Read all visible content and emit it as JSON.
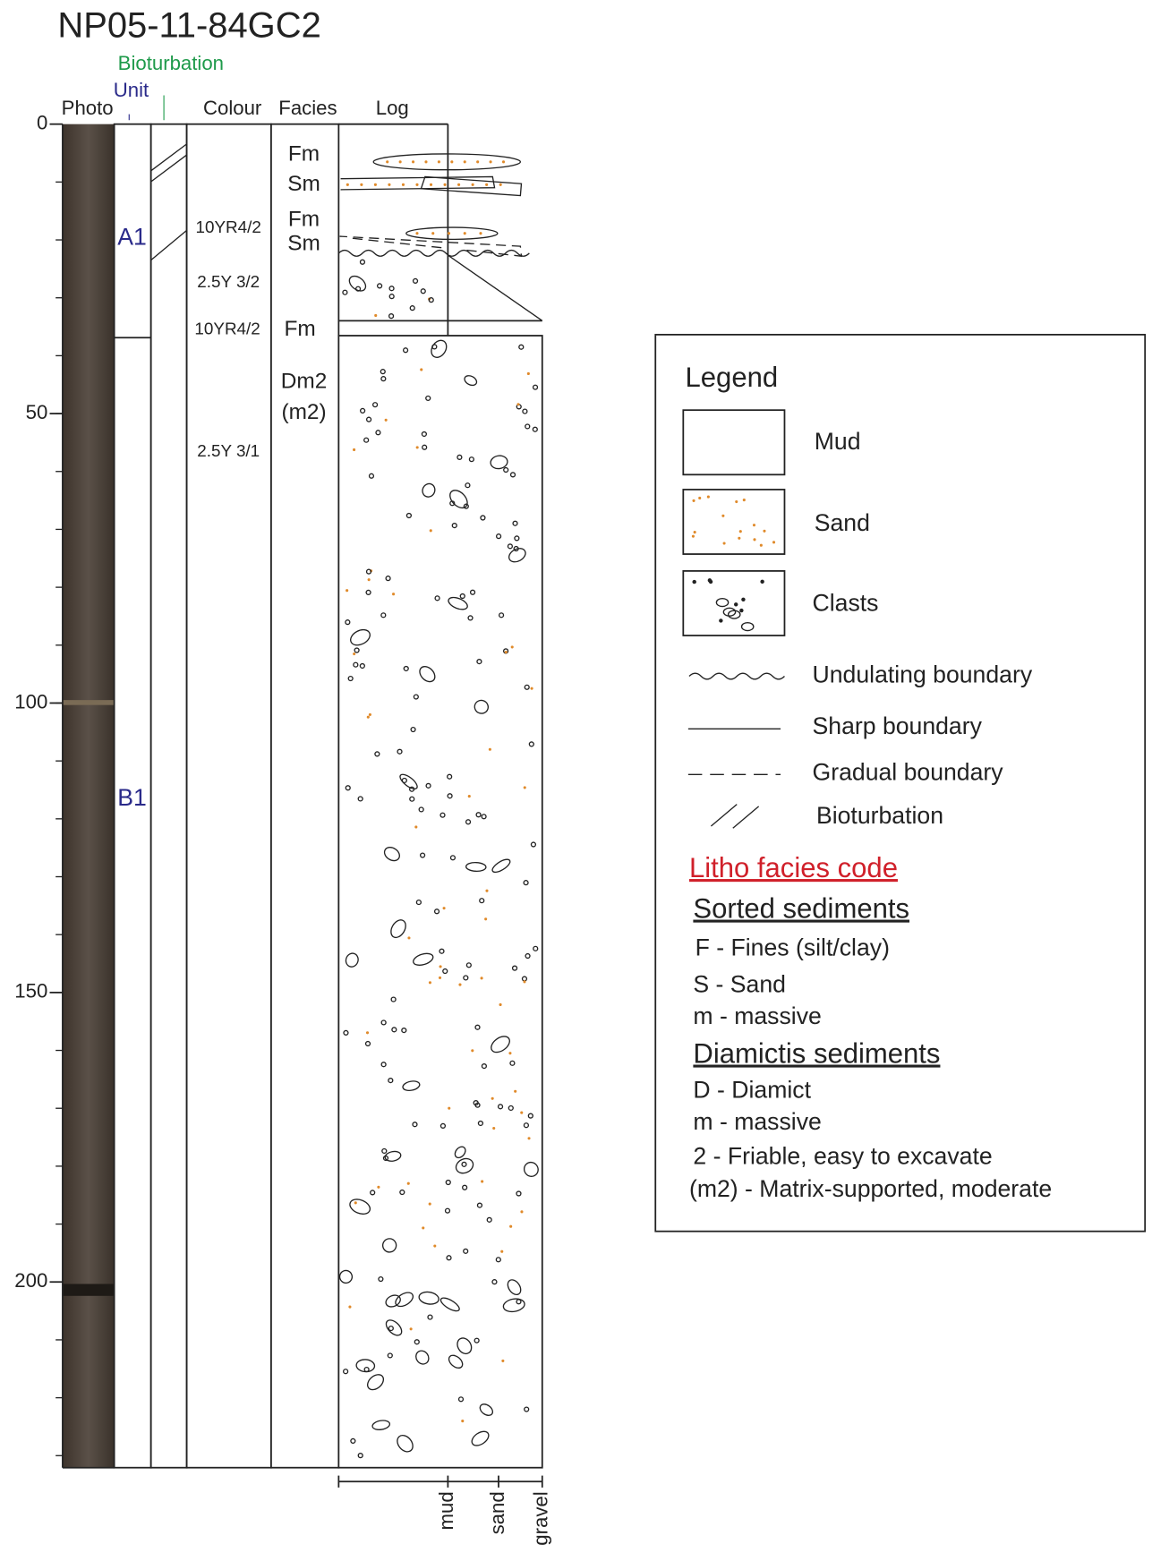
{
  "title": "NP05-11-84GC2",
  "columns": {
    "bioturbation": "Bioturbation",
    "unit": "Unit",
    "photo": "Photo",
    "colour": "Colour",
    "facies": "Facies",
    "log": "Log"
  },
  "depth_axis": {
    "ticks": [
      0,
      50,
      100,
      150,
      200
    ]
  },
  "units": [
    "A1",
    "B1"
  ],
  "colours": [
    "10YR4/2",
    "2.5Y 3/2",
    "10YR4/2",
    "2.5Y 3/1"
  ],
  "facies": [
    "Fm",
    "Sm",
    "Fm",
    "Sm",
    "Fm",
    "Dm2",
    "(m2)"
  ],
  "grain_size": [
    "mud",
    "sand",
    "gravel"
  ],
  "legend": {
    "title": "Legend",
    "items": [
      "Mud",
      "Sand",
      "Clasts",
      "Undulating boundary",
      "Sharp boundary",
      "Gradual boundary",
      "Bioturbation"
    ]
  },
  "facies_code": {
    "title": "Litho facies code",
    "sorted": {
      "heading": "Sorted sediments",
      "lines": [
        "F - Fines (silt/clay)",
        "S - Sand",
        "m - massive"
      ]
    },
    "diamict": {
      "heading": "Diamictis sediments",
      "lines": [
        "D - Diamict",
        "m - massive",
        "2 -  Friable, easy to excavate",
        "(m2) -  Matrix-supported, moderate"
      ]
    }
  }
}
